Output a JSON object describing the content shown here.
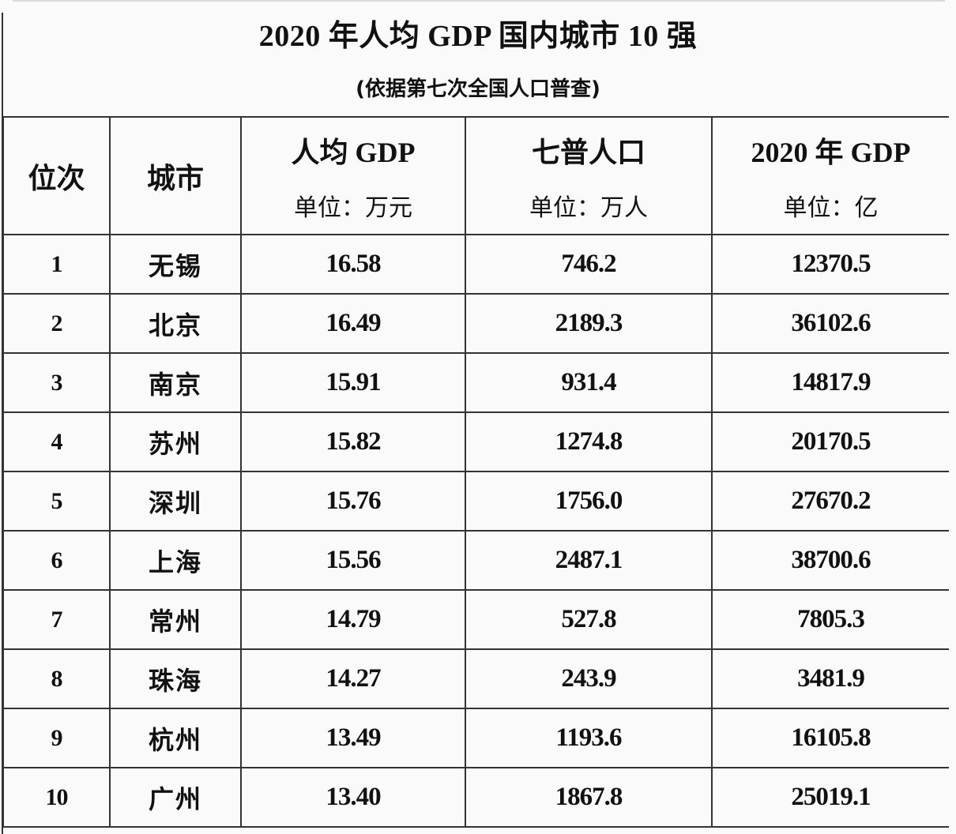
{
  "title": "2020 年人均 GDP 国内城市 10 强",
  "subtitle": "(依据第七次全国人口普查)",
  "table": {
    "headers": [
      {
        "label": "位次",
        "unit": ""
      },
      {
        "label": "城市",
        "unit": ""
      },
      {
        "label": "人均 GDP",
        "unit": "单位：万元"
      },
      {
        "label": "七普人口",
        "unit": "单位：万人"
      },
      {
        "label": "2020 年 GDP",
        "unit": "单位：亿"
      }
    ],
    "rows": [
      {
        "rank": "1",
        "city": "无锡",
        "gdp_per_capita": "16.58",
        "population": "746.2",
        "gdp": "12370.5"
      },
      {
        "rank": "2",
        "city": "北京",
        "gdp_per_capita": "16.49",
        "population": "2189.3",
        "gdp": "36102.6"
      },
      {
        "rank": "3",
        "city": "南京",
        "gdp_per_capita": "15.91",
        "population": "931.4",
        "gdp": "14817.9"
      },
      {
        "rank": "4",
        "city": "苏州",
        "gdp_per_capita": "15.82",
        "population": "1274.8",
        "gdp": "20170.5"
      },
      {
        "rank": "5",
        "city": "深圳",
        "gdp_per_capita": "15.76",
        "population": "1756.0",
        "gdp": "27670.2"
      },
      {
        "rank": "6",
        "city": "上海",
        "gdp_per_capita": "15.56",
        "population": "2487.1",
        "gdp": "38700.6"
      },
      {
        "rank": "7",
        "city": "常州",
        "gdp_per_capita": "14.79",
        "population": "527.8",
        "gdp": "7805.3"
      },
      {
        "rank": "8",
        "city": "珠海",
        "gdp_per_capita": "14.27",
        "population": "243.9",
        "gdp": "3481.9"
      },
      {
        "rank": "9",
        "city": "杭州",
        "gdp_per_capita": "13.49",
        "population": "1193.6",
        "gdp": "16105.8"
      },
      {
        "rank": "10",
        "city": "广州",
        "gdp_per_capita": "13.40",
        "population": "1867.8",
        "gdp": "25019.1"
      }
    ]
  }
}
